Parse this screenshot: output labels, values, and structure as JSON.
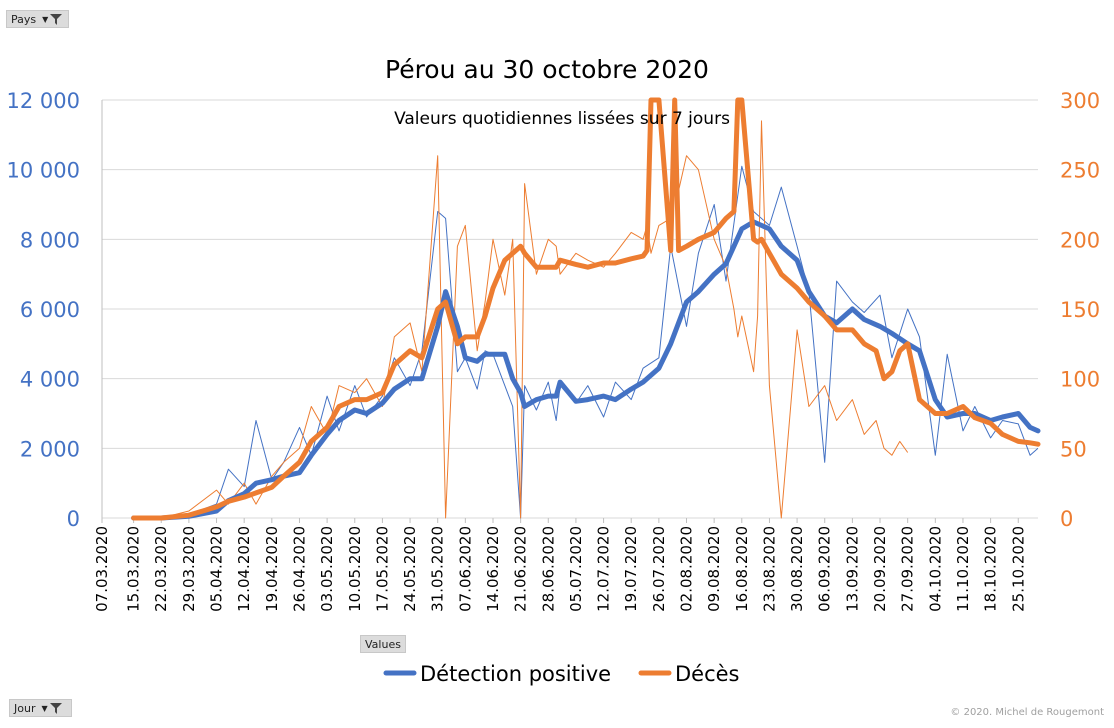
{
  "controls": {
    "country_filter_label": "Pays",
    "day_filter_label": "Jour",
    "values_label": "Values"
  },
  "copyright": "© 2020.  Michel de Rougemont",
  "colors": {
    "positives": "#4472c4",
    "deaths": "#ed7d31",
    "grid": "#d9d9d9",
    "axis_text": "#595959"
  },
  "chart_data": {
    "type": "line",
    "title": "Pérou au 30 octobre 2020",
    "subtitle": "Valeurs quotidiennes  lissées sur 7 jours",
    "legend_position": "bottom",
    "grid": true,
    "x_start": "2020-03-07",
    "x_end": "2020-10-30",
    "x_tick_labels": [
      "07.03.2020",
      "15.03.2020",
      "22.03.2020",
      "29.03.2020",
      "05.04.2020",
      "12.04.2020",
      "19.04.2020",
      "26.04.2020",
      "03.05.2020",
      "10.05.2020",
      "17.05.2020",
      "24.05.2020",
      "31.05.2020",
      "07.06.2020",
      "14.06.2020",
      "21.06.2020",
      "28.06.2020",
      "05.07.2020",
      "12.07.2020",
      "19.07.2020",
      "26.07.2020",
      "02.08.2020",
      "09.08.2020",
      "16.08.2020",
      "23.08.2020",
      "30.08.2020",
      "06.09.2020",
      "13.09.2020",
      "20.09.2020",
      "27.09.2020",
      "04.10.2020",
      "11.10.2020",
      "18.10.2020",
      "25.10.2020"
    ],
    "y_left": {
      "ylim": [
        0,
        12000
      ],
      "ticks": [
        "0",
        "2 000",
        "4 000",
        "6 000",
        "8 000",
        "10 000",
        "12 000"
      ]
    },
    "y_right": {
      "ylim": [
        0,
        300
      ],
      "ticks": [
        "0",
        "50",
        "100",
        "150",
        "200",
        "250",
        "300"
      ]
    },
    "series": [
      {
        "name": "Détection positive",
        "axis": "left",
        "x": [
          "2020-03-15",
          "2020-03-22",
          "2020-03-29",
          "2020-04-05",
          "2020-04-08",
          "2020-04-12",
          "2020-04-15",
          "2020-04-19",
          "2020-04-22",
          "2020-04-26",
          "2020-04-29",
          "2020-05-03",
          "2020-05-06",
          "2020-05-10",
          "2020-05-13",
          "2020-05-17",
          "2020-05-20",
          "2020-05-24",
          "2020-05-27",
          "2020-05-31",
          "2020-06-02",
          "2020-06-05",
          "2020-06-07",
          "2020-06-10",
          "2020-06-12",
          "2020-06-14",
          "2020-06-17",
          "2020-06-19",
          "2020-06-21",
          "2020-06-22",
          "2020-06-25",
          "2020-06-28",
          "2020-06-30",
          "2020-07-01",
          "2020-07-05",
          "2020-07-08",
          "2020-07-12",
          "2020-07-15",
          "2020-07-19",
          "2020-07-22",
          "2020-07-26",
          "2020-07-29",
          "2020-08-02",
          "2020-08-05",
          "2020-08-09",
          "2020-08-12",
          "2020-08-16",
          "2020-08-19",
          "2020-08-23",
          "2020-08-26",
          "2020-08-30",
          "2020-09-02",
          "2020-09-06",
          "2020-09-09",
          "2020-09-13",
          "2020-09-16",
          "2020-09-20",
          "2020-09-23",
          "2020-09-27",
          "2020-09-30",
          "2020-10-04",
          "2020-10-07",
          "2020-10-11",
          "2020-10-14",
          "2020-10-18",
          "2020-10-21",
          "2020-10-25",
          "2020-10-28",
          "2020-10-30"
        ],
        "values": [
          0,
          0,
          50,
          200,
          500,
          700,
          1000,
          1100,
          1200,
          1300,
          1800,
          2400,
          2800,
          3100,
          3000,
          3300,
          3700,
          4000,
          4000,
          5500,
          6500,
          5500,
          4600,
          4500,
          4700,
          4700,
          4700,
          4000,
          3600,
          3200,
          3400,
          3500,
          3500,
          3900,
          3350,
          3400,
          3500,
          3400,
          3700,
          3900,
          4300,
          5000,
          6200,
          6500,
          7000,
          7300,
          8300,
          8500,
          8300,
          7800,
          7400,
          6500,
          5800,
          5600,
          6000,
          5700,
          5500,
          5300,
          5000,
          4800,
          3400,
          2900,
          3000,
          3000,
          2800,
          2900,
          3000,
          2600,
          2500
        ]
      },
      {
        "name": "Décès",
        "axis": "right",
        "x": [
          "2020-03-15",
          "2020-03-22",
          "2020-03-29",
          "2020-04-05",
          "2020-04-08",
          "2020-04-12",
          "2020-04-15",
          "2020-04-19",
          "2020-04-22",
          "2020-04-26",
          "2020-04-29",
          "2020-05-03",
          "2020-05-06",
          "2020-05-10",
          "2020-05-13",
          "2020-05-17",
          "2020-05-20",
          "2020-05-24",
          "2020-05-27",
          "2020-05-31",
          "2020-06-02",
          "2020-06-05",
          "2020-06-07",
          "2020-06-10",
          "2020-06-12",
          "2020-06-14",
          "2020-06-17",
          "2020-06-19",
          "2020-06-21",
          "2020-06-22",
          "2020-06-25",
          "2020-06-28",
          "2020-06-30",
          "2020-07-01",
          "2020-07-05",
          "2020-07-08",
          "2020-07-12",
          "2020-07-15",
          "2020-07-19",
          "2020-07-22",
          "2020-07-23",
          "2020-07-24",
          "2020-07-26",
          "2020-07-29",
          "2020-07-30",
          "2020-07-31",
          "2020-08-02",
          "2020-08-05",
          "2020-08-09",
          "2020-08-12",
          "2020-08-14",
          "2020-08-15",
          "2020-08-16",
          "2020-08-19",
          "2020-08-20",
          "2020-08-21",
          "2020-08-23",
          "2020-08-26",
          "2020-08-30",
          "2020-09-02",
          "2020-09-06",
          "2020-09-09",
          "2020-09-13",
          "2020-09-16",
          "2020-09-19",
          "2020-09-21",
          "2020-09-23",
          "2020-09-25",
          "2020-09-27",
          "2020-09-30",
          "2020-10-04",
          "2020-10-07",
          "2020-10-11",
          "2020-10-14",
          "2020-10-18",
          "2020-10-21",
          "2020-10-25",
          "2020-10-28",
          "2020-10-30"
        ],
        "values": [
          0,
          0,
          2,
          8,
          12,
          15,
          18,
          22,
          30,
          40,
          55,
          65,
          80,
          85,
          85,
          90,
          110,
          120,
          115,
          150,
          155,
          125,
          130,
          130,
          145,
          165,
          185,
          190,
          195,
          190,
          180,
          180,
          180,
          185,
          182,
          180,
          183,
          183,
          186,
          188,
          192,
          300,
          300,
          192,
          300,
          192,
          195,
          200,
          205,
          215,
          220,
          300,
          300,
          200,
          198,
          200,
          190,
          175,
          165,
          155,
          145,
          135,
          135,
          125,
          120,
          100,
          105,
          120,
          125,
          85,
          75,
          75,
          80,
          72,
          68,
          60,
          55,
          54,
          53
        ]
      }
    ],
    "raw_series": [
      {
        "name": "Détection positive",
        "axis": "left",
        "values": [
          0,
          0,
          100,
          400,
          1400,
          900,
          2800,
          1100,
          1600,
          2600,
          1800,
          3500,
          2500,
          3800,
          2900,
          3500,
          4600,
          3800,
          4800,
          8800,
          8600,
          4200,
          4600,
          3700,
          4800,
          4700,
          3800,
          3200,
          0,
          3800,
          3100,
          3900,
          2800,
          3800,
          3300,
          3800,
          2900,
          3900,
          3400,
          4300,
          4600,
          7800,
          5500,
          7600,
          9000,
          6800,
          10100,
          8800,
          8400,
          9500,
          7800,
          6500,
          1600,
          6800,
          6200,
          5900,
          6400,
          4600,
          6000,
          5200,
          1800,
          4700,
          2500,
          3200,
          2300,
          2800,
          2700,
          1800,
          2000
        ]
      },
      {
        "name": "Décès",
        "axis": "right",
        "values": [
          0,
          0,
          5,
          20,
          10,
          25,
          10,
          30,
          40,
          50,
          80,
          60,
          95,
          90,
          100,
          80,
          130,
          140,
          105,
          260,
          0,
          195,
          210,
          120,
          155,
          200,
          160,
          200,
          0,
          240,
          175,
          200,
          195,
          175,
          190,
          185,
          180,
          190,
          205,
          200,
          210,
          190,
          210,
          215,
          240,
          235,
          260,
          250,
          200,
          180,
          150,
          130,
          145,
          105,
          145,
          285,
          95,
          0,
          135,
          80,
          95,
          70,
          85,
          60,
          70,
          50,
          45,
          55,
          47
        ]
      }
    ]
  }
}
